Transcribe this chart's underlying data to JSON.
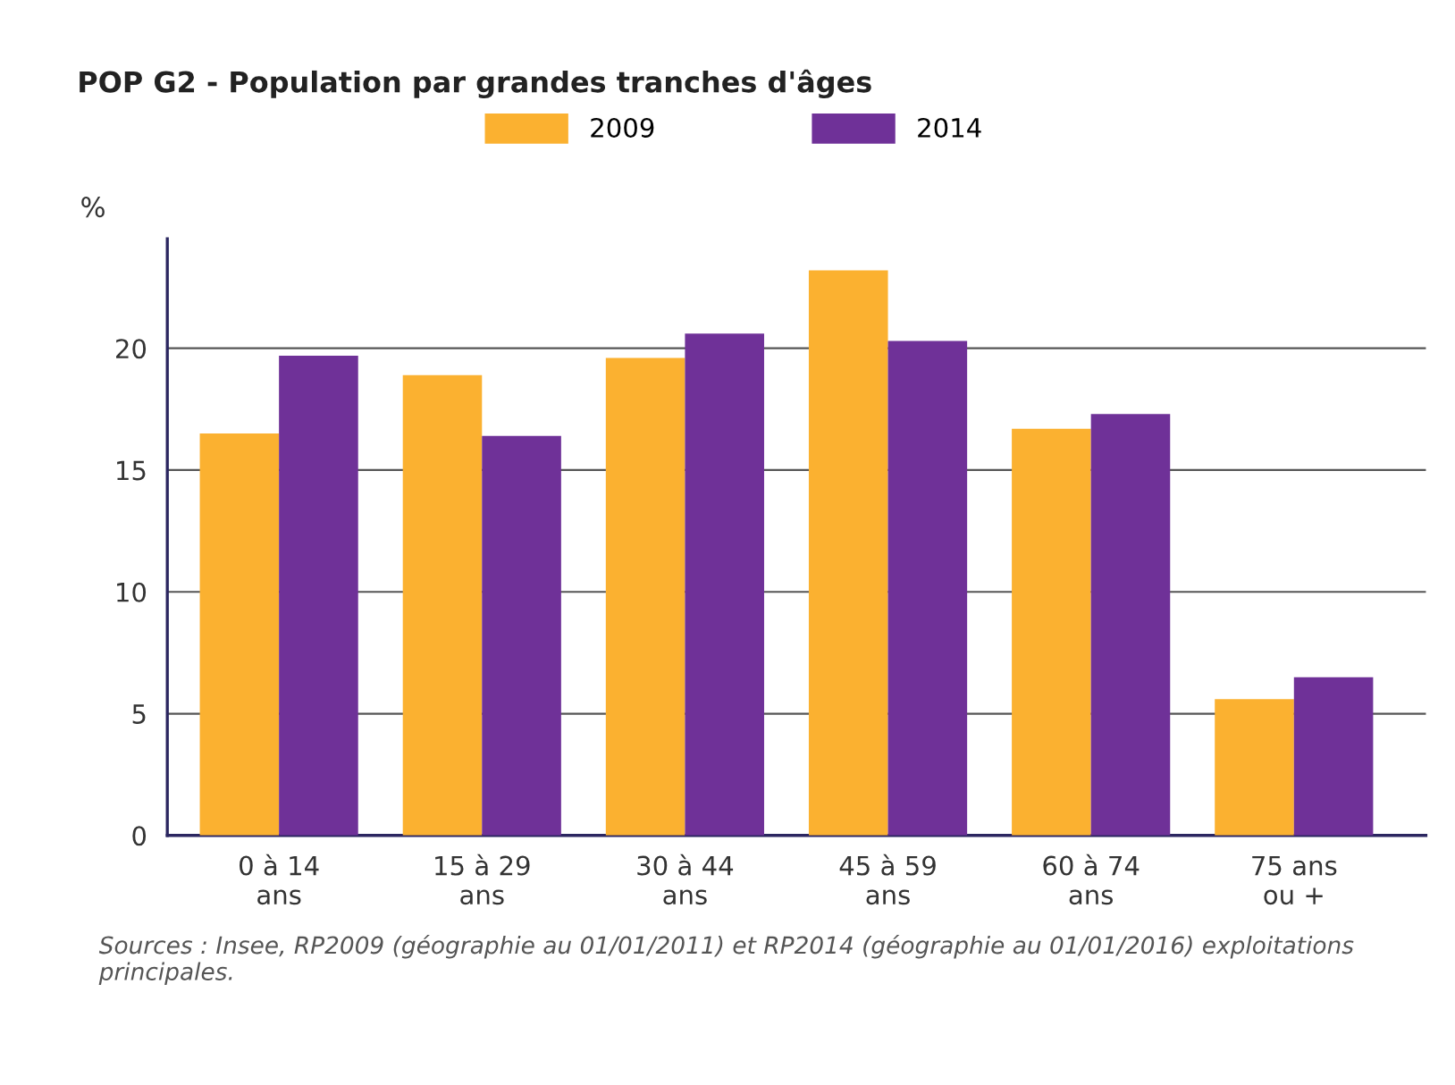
{
  "chart_data": {
    "type": "bar",
    "title": "POP G2 - Population par grandes tranches d'âges",
    "ylabel": "%",
    "categories": [
      "0 à 14\nans",
      "15 à 29\nans",
      "30 à 44\nans",
      "45 à 59\nans",
      "60 à 74\nans",
      "75 ans\nou +"
    ],
    "series": [
      {
        "name": "2009",
        "color": "#fbb130",
        "values": [
          16.5,
          18.9,
          19.6,
          23.2,
          16.7,
          5.6
        ]
      },
      {
        "name": "2014",
        "color": "#6f3198",
        "values": [
          19.7,
          16.4,
          20.6,
          20.3,
          17.3,
          6.5
        ]
      }
    ],
    "ylim": [
      0,
      24.5
    ],
    "yticks": [
      0,
      5,
      10,
      15,
      20
    ],
    "grid": "y",
    "legend": "top",
    "annotations": [
      "Sources : Insee, RP2009 (géographie au 01/01/2011) et RP2014 (géographie au 01/01/2016) exploitations principales."
    ]
  }
}
